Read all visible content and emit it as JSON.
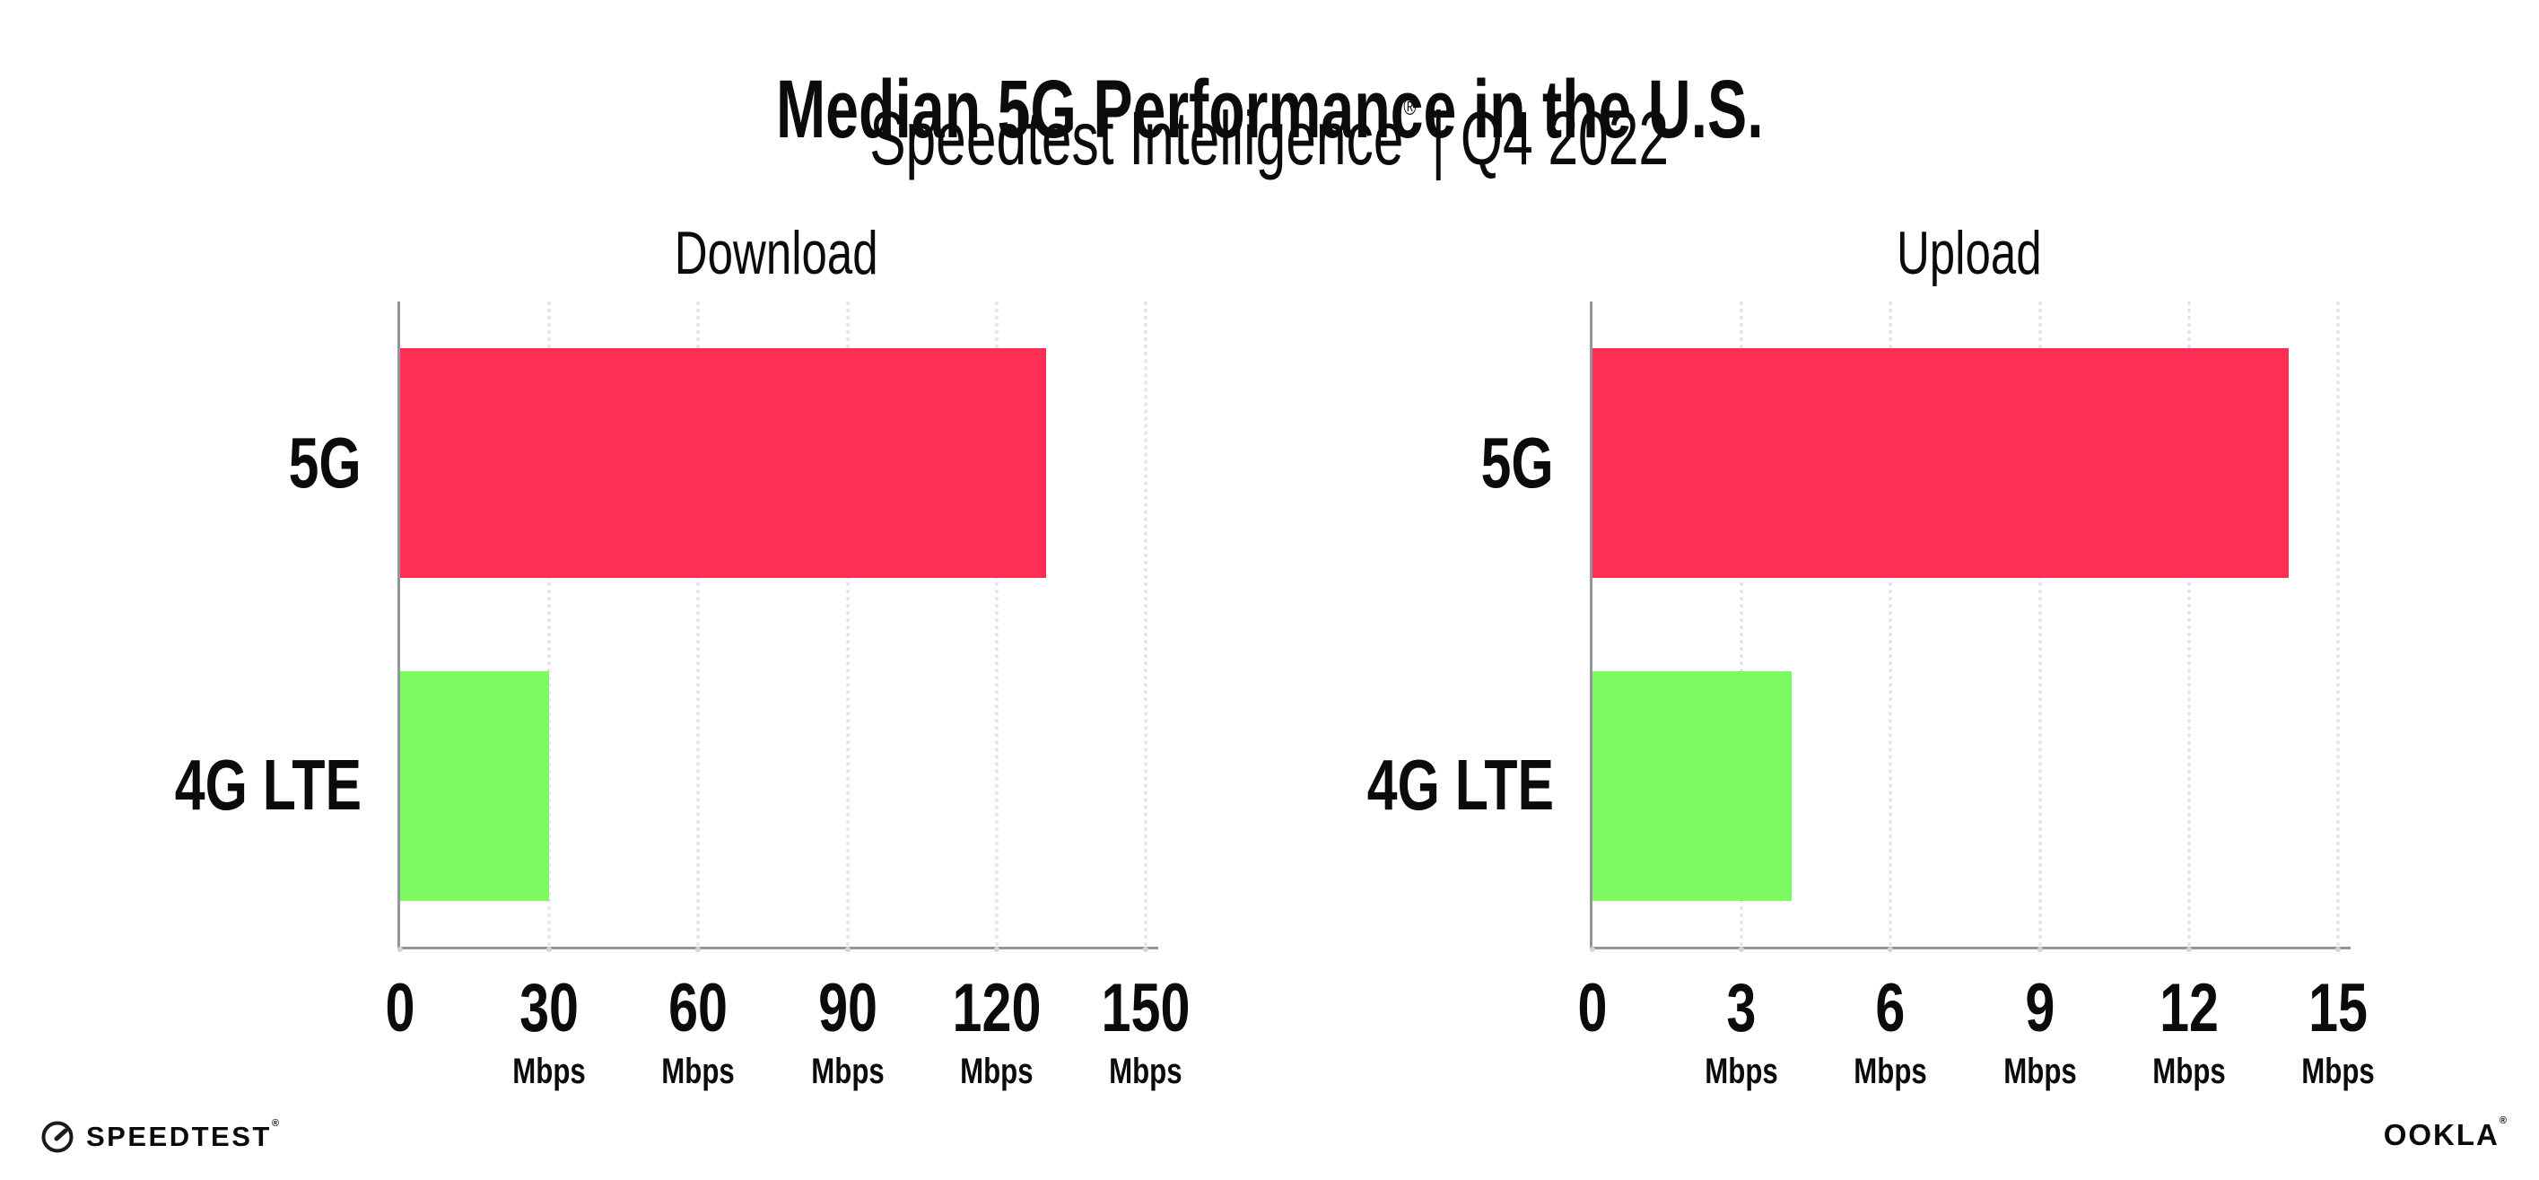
{
  "header": {
    "title": "Median 5G Performance in the U.S.",
    "subtitle_brand": "Speedtest Intelligence",
    "reg": "®",
    "subtitle_rest": " | Q4 2022"
  },
  "footer": {
    "speedtest_label": "SPEEDTEST",
    "speedtest_reg": "®",
    "ookla_label": "OOKLA",
    "ookla_reg": "®"
  },
  "colors": {
    "bar_5g": "#FF2E55",
    "bar_4g_lte": "#7CFA60",
    "axis_line": "#94949c",
    "gridline": "#e3e3eb",
    "text": "#0b0b0e",
    "background": "#ffffff"
  },
  "chart_data": [
    {
      "type": "bar",
      "orientation": "horizontal",
      "title": "Download",
      "categories": [
        "5G",
        "4G LTE"
      ],
      "values": [
        130,
        30
      ],
      "unit": "Mbps",
      "xlim": [
        0,
        150
      ],
      "xticks": [
        0,
        30,
        60,
        90,
        120,
        150
      ],
      "bar_colors": [
        "#FF2E55",
        "#7CFA60"
      ],
      "grid": "dotted-vertical-at-ticks",
      "legend": "none"
    },
    {
      "type": "bar",
      "orientation": "horizontal",
      "title": "Upload",
      "categories": [
        "5G",
        "4G LTE"
      ],
      "values": [
        14,
        4
      ],
      "unit": "Mbps",
      "xlim": [
        0,
        15
      ],
      "xticks": [
        0,
        3,
        6,
        9,
        12,
        15
      ],
      "bar_colors": [
        "#FF2E55",
        "#7CFA60"
      ],
      "grid": "dotted-vertical-at-ticks",
      "legend": "none"
    }
  ]
}
